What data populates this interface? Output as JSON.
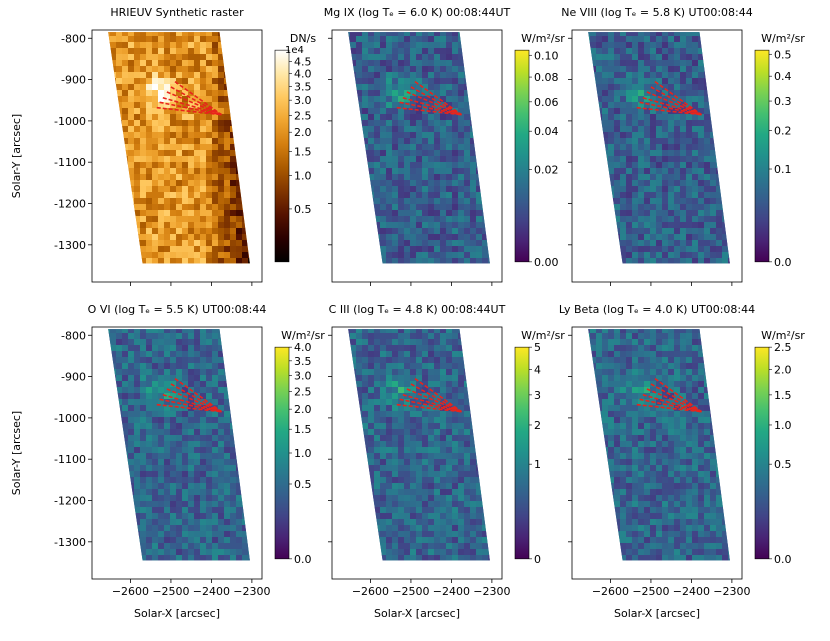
{
  "chart_data": [
    {
      "type": "heatmap",
      "title": "HRIEUV Synthetic raster",
      "colormap": "afmhot",
      "colorbar_label": "DN/s",
      "colorbar_multiplier": "1e4",
      "colorbar_scale": "log",
      "colorbar_ticks": [
        "4.5",
        "4.0",
        "3.5",
        "3.0",
        "2.5",
        "2.0",
        "1.5",
        "1.0",
        "0.5"
      ],
      "colorbar_tick_values": [
        4.5,
        4.0,
        3.5,
        3.0,
        2.5,
        2.0,
        1.5,
        1.0,
        0.5
      ],
      "colorbar_range": [
        0.2,
        5.0
      ],
      "ylabel": "Solar-Y [arcsec]",
      "xlabel": "",
      "yticks": [
        "-800",
        "-900",
        "-1000",
        "-1100",
        "-1200",
        "-1300"
      ],
      "xticks": []
    },
    {
      "type": "heatmap",
      "title": "Mg IX (log Tₑ =  6.0 K) 00:08:44UT",
      "colormap": "viridis",
      "colorbar_label": "W/m²/sr",
      "colorbar_scale": "log",
      "colorbar_ticks": [
        "0.10",
        "0.08",
        "0.06",
        "0.04",
        "0.02",
        "0.00"
      ],
      "colorbar_tick_values": [
        0.1,
        0.08,
        0.06,
        0.04,
        0.02,
        0.0
      ],
      "colorbar_range": [
        0.0,
        0.105
      ],
      "ylabel": "",
      "xlabel": "",
      "yticks": [],
      "xticks": []
    },
    {
      "type": "heatmap",
      "title": "Ne VIII (log Tₑ =  5.8 K) UT00:08:44",
      "colormap": "viridis",
      "colorbar_label": "W/m²/sr",
      "colorbar_scale": "log",
      "colorbar_ticks": [
        "0.5",
        "0.4",
        "0.3",
        "0.2",
        "0.1",
        "0.0"
      ],
      "colorbar_tick_values": [
        0.5,
        0.4,
        0.3,
        0.2,
        0.1,
        0.0
      ],
      "colorbar_range": [
        0.0,
        0.52
      ],
      "ylabel": "",
      "xlabel": "",
      "yticks": [],
      "xticks": []
    },
    {
      "type": "heatmap",
      "title": "O VI (log Tₑ =  5.5 K) UT00:08:44",
      "colormap": "viridis",
      "colorbar_label": "W/m²/sr",
      "colorbar_scale": "log",
      "colorbar_ticks": [
        "4.0",
        "3.5",
        "3.0",
        "2.5",
        "2.0",
        "1.5",
        "1.0",
        "0.5",
        "0.0"
      ],
      "colorbar_tick_values": [
        4.0,
        3.5,
        3.0,
        2.5,
        2.0,
        1.5,
        1.0,
        0.5,
        0.0
      ],
      "colorbar_range": [
        0.0,
        4.0
      ],
      "ylabel": "Solar-Y [arcsec]",
      "xlabel": "Solar-X [arcsec]",
      "yticks": [
        "-800",
        "-900",
        "-1000",
        "-1100",
        "-1200",
        "-1300"
      ],
      "xticks": [
        "−2600",
        "−2500",
        "−2400",
        "−2300"
      ]
    },
    {
      "type": "heatmap",
      "title": "C III (log Tₑ =  4.8 K) 00:08:44UT",
      "colormap": "viridis",
      "colorbar_label": "W/m²/sr",
      "colorbar_scale": "log",
      "colorbar_ticks": [
        "5",
        "4",
        "3",
        "2",
        "1",
        "0"
      ],
      "colorbar_tick_values": [
        5,
        4,
        3,
        2,
        1,
        0
      ],
      "colorbar_range": [
        0.0,
        5.0
      ],
      "ylabel": "",
      "xlabel": "Solar-X [arcsec]",
      "yticks": [],
      "xticks": [
        "−2600",
        "−2500",
        "−2400",
        "−2300"
      ]
    },
    {
      "type": "heatmap",
      "title": "Ly Beta (log Tₑ =  4.0 K) UT00:08:44",
      "colormap": "viridis",
      "colorbar_label": "W/m²/sr",
      "colorbar_scale": "log",
      "colorbar_ticks": [
        "2.5",
        "2.0",
        "1.5",
        "1.0",
        "0.5",
        "0.0"
      ],
      "colorbar_tick_values": [
        2.5,
        2.0,
        1.5,
        1.0,
        0.5,
        0.0
      ],
      "colorbar_range": [
        0.0,
        2.5
      ],
      "ylabel": "",
      "xlabel": "Solar-X [arcsec]",
      "yticks": [],
      "xticks": [
        "−2600",
        "−2500",
        "−2400",
        "−2300"
      ]
    }
  ],
  "axes": {
    "x_range": [
      -2695,
      -2275
    ],
    "y_range": [
      -1390,
      -780
    ],
    "x_tick_values": [
      -2600,
      -2500,
      -2400,
      -2300
    ],
    "y_tick_values": [
      -800,
      -900,
      -1000,
      -1100,
      -1200,
      -1300
    ],
    "raster_corners_data": [
      [
        -2655,
        -785
      ],
      [
        -2380,
        -785
      ],
      [
        -2305,
        -1345
      ],
      [
        -2570,
        -1345
      ]
    ]
  },
  "overlay": {
    "color": "#e8241c",
    "style": "dashed",
    "fan_apex": [
      -2375,
      -985
    ],
    "fan_endpoints": [
      [
        -2490,
        -905
      ],
      [
        -2500,
        -918
      ],
      [
        -2510,
        -930
      ],
      [
        -2520,
        -944
      ],
      [
        -2528,
        -955
      ],
      [
        -2535,
        -968
      ]
    ]
  }
}
